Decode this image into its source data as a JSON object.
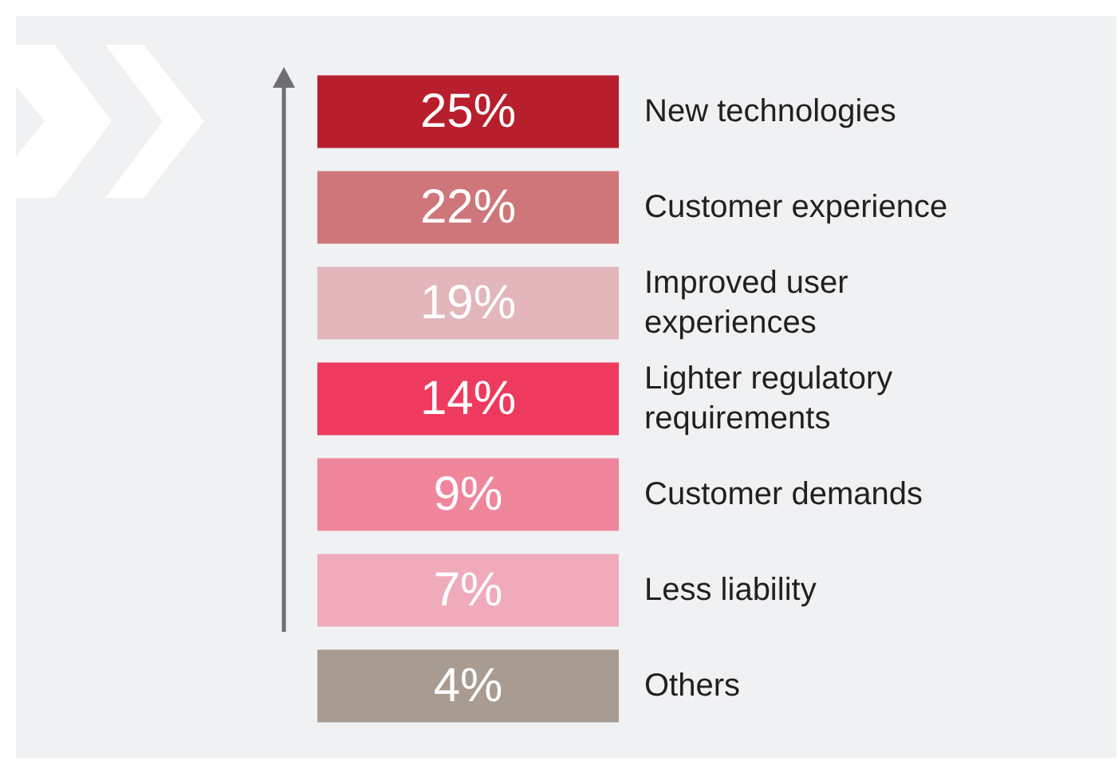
{
  "chart_data": {
    "type": "other",
    "categories": [
      "New technologies",
      "Customer experience",
      "Improved user experiences",
      "Lighter regulatory requirements",
      "Customer demands",
      "Less liability",
      "Others"
    ],
    "values": [
      25,
      22,
      19,
      14,
      9,
      7,
      4
    ],
    "value_labels": [
      "25%",
      "22%",
      "19%",
      "14%",
      "9%",
      "7%",
      "4%"
    ],
    "colors": [
      "#b81f2d",
      "#cf767a",
      "#e2b6bb",
      "#ee3a5e",
      "#ef869c",
      "#f0abbb",
      "#a89b91"
    ]
  }
}
